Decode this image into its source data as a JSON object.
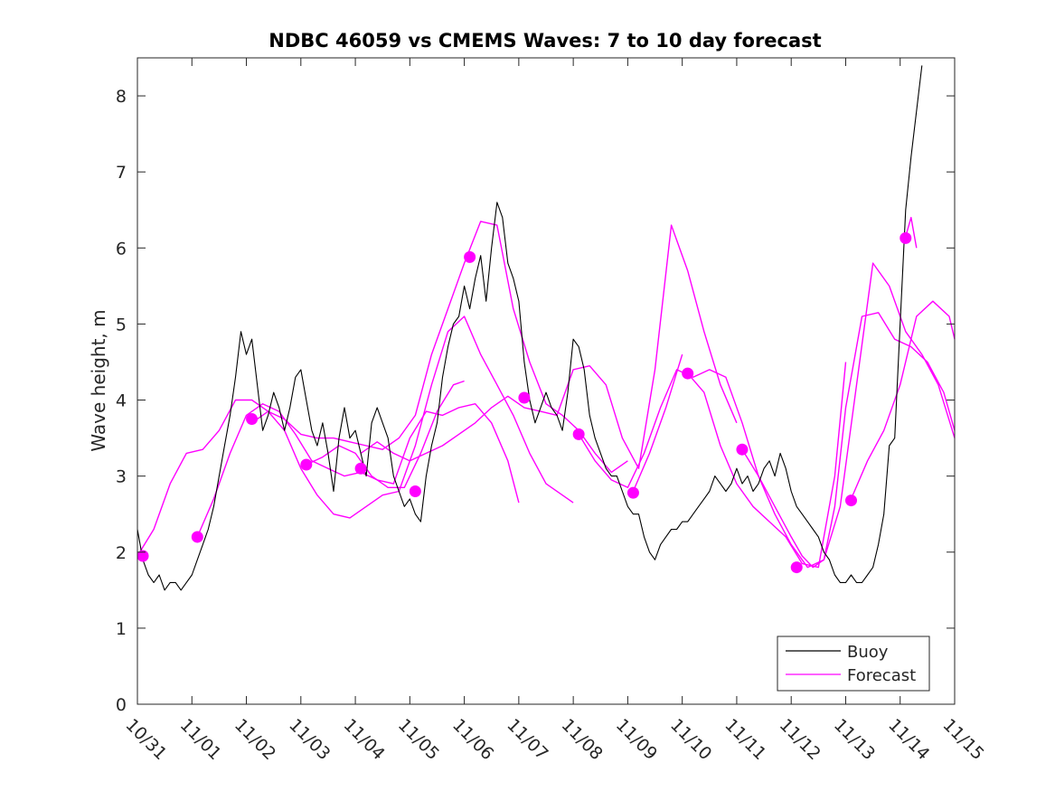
{
  "chart_data": {
    "type": "line",
    "title": "NDBC 46059 vs CMEMS Waves: 7 to 10 day forecast",
    "xlabel": "",
    "ylabel": "Wave height, m",
    "xlim": [
      0,
      15
    ],
    "ylim": [
      0,
      8.5
    ],
    "yticks": [
      0,
      1,
      2,
      3,
      4,
      5,
      6,
      7,
      8
    ],
    "xtick_labels": [
      "10/31",
      "11/01",
      "11/02",
      "11/03",
      "11/04",
      "11/05",
      "11/06",
      "11/07",
      "11/08",
      "11/09",
      "11/10",
      "11/11",
      "11/12",
      "11/13",
      "11/14",
      "11/15"
    ],
    "grid": false,
    "legend": {
      "position": "bottom-right",
      "entries": [
        {
          "label": "Buoy",
          "color": "#000000"
        },
        {
          "label": "Forecast",
          "color": "#ff00ff"
        }
      ]
    },
    "colors": {
      "buoy": "#000000",
      "forecast": "#ff00ff"
    },
    "buoy": {
      "name": "Buoy",
      "x": [
        0,
        0.1,
        0.2,
        0.3,
        0.4,
        0.5,
        0.6,
        0.7,
        0.8,
        0.9,
        1.0,
        1.1,
        1.2,
        1.3,
        1.4,
        1.5,
        1.6,
        1.7,
        1.8,
        1.9,
        2.0,
        2.1,
        2.2,
        2.3,
        2.4,
        2.5,
        2.6,
        2.7,
        2.8,
        2.9,
        3.0,
        3.1,
        3.2,
        3.3,
        3.4,
        3.5,
        3.6,
        3.7,
        3.8,
        3.9,
        4.0,
        4.1,
        4.2,
        4.3,
        4.4,
        4.5,
        4.6,
        4.7,
        4.8,
        4.9,
        5.0,
        5.1,
        5.2,
        5.3,
        5.4,
        5.5,
        5.6,
        5.7,
        5.8,
        5.9,
        6.0,
        6.1,
        6.2,
        6.3,
        6.4,
        6.5,
        6.6,
        6.7,
        6.8,
        6.9,
        7.0,
        7.1,
        7.2,
        7.3,
        7.4,
        7.5,
        7.6,
        7.7,
        7.8,
        7.9,
        8.0,
        8.1,
        8.2,
        8.3,
        8.4,
        8.5,
        8.6,
        8.7,
        8.8,
        8.9,
        9.0,
        9.1,
        9.2,
        9.3,
        9.4,
        9.5,
        9.6,
        9.7,
        9.8,
        9.9,
        10.0,
        10.1,
        10.2,
        10.3,
        10.4,
        10.5,
        10.6,
        10.7,
        10.8,
        10.9,
        11.0,
        11.1,
        11.2,
        11.3,
        11.4,
        11.5,
        11.6,
        11.7,
        11.8,
        11.9,
        12.0,
        12.1,
        12.2,
        12.3,
        12.4,
        12.5,
        12.6,
        12.7,
        12.8,
        12.9,
        13.0,
        13.1,
        13.2,
        13.3,
        13.4,
        13.5,
        13.6,
        13.7,
        13.8,
        13.9,
        14.0,
        14.1,
        14.2,
        14.3,
        14.4
      ],
      "values": [
        2.3,
        1.9,
        1.7,
        1.6,
        1.7,
        1.5,
        1.6,
        1.6,
        1.5,
        1.6,
        1.7,
        1.9,
        2.1,
        2.3,
        2.6,
        3.0,
        3.4,
        3.8,
        4.3,
        4.9,
        4.6,
        4.8,
        4.2,
        3.6,
        3.8,
        4.1,
        3.9,
        3.6,
        3.9,
        4.3,
        4.4,
        4.0,
        3.6,
        3.4,
        3.7,
        3.3,
        2.8,
        3.5,
        3.9,
        3.5,
        3.6,
        3.3,
        3.0,
        3.7,
        3.9,
        3.7,
        3.5,
        3.0,
        2.8,
        2.6,
        2.7,
        2.5,
        2.4,
        3.0,
        3.4,
        3.7,
        4.3,
        4.7,
        5.0,
        5.1,
        5.5,
        5.2,
        5.6,
        5.9,
        5.3,
        6.0,
        6.6,
        6.4,
        5.8,
        5.6,
        5.3,
        4.5,
        4.0,
        3.7,
        3.9,
        4.1,
        3.9,
        3.8,
        3.6,
        4.1,
        4.8,
        4.7,
        4.4,
        3.8,
        3.5,
        3.3,
        3.1,
        3.0,
        3.0,
        2.8,
        2.6,
        2.5,
        2.5,
        2.2,
        2.0,
        1.9,
        2.1,
        2.2,
        2.3,
        2.3,
        2.4,
        2.4,
        2.5,
        2.6,
        2.7,
        2.8,
        3.0,
        2.9,
        2.8,
        2.9,
        3.1,
        2.9,
        3.0,
        2.8,
        2.9,
        3.1,
        3.2,
        3.0,
        3.3,
        3.1,
        2.8,
        2.6,
        2.5,
        2.4,
        2.3,
        2.2,
        2.0,
        1.9,
        1.7,
        1.6,
        1.6,
        1.7,
        1.6,
        1.6,
        1.7,
        1.8,
        2.1,
        2.5,
        3.4,
        3.5,
        5.0,
        6.5,
        7.2,
        7.8,
        8.4
      ]
    },
    "forecast_series": [
      {
        "x": [
          0,
          0.3,
          0.6,
          0.9,
          1.2,
          1.5,
          1.8,
          2.1,
          2.4,
          2.7,
          3.0,
          3.3,
          3.6,
          3.9,
          4.2,
          4.5,
          4.8,
          5.1,
          5.4,
          5.7,
          6.0,
          6.3,
          6.6,
          6.9,
          7.2,
          7.5,
          7.8,
          8.0
        ],
        "values": [
          1.95,
          2.3,
          2.9,
          3.3,
          3.35,
          3.6,
          4.0,
          4.0,
          3.85,
          3.6,
          3.1,
          2.75,
          2.5,
          2.45,
          2.6,
          2.75,
          2.8,
          3.4,
          4.2,
          4.9,
          5.1,
          4.6,
          4.2,
          3.8,
          3.3,
          2.9,
          2.75,
          2.65
        ]
      },
      {
        "x": [
          1.1,
          1.4,
          1.7,
          2.0,
          2.3,
          2.6,
          2.9,
          3.2,
          3.5,
          3.8,
          4.1,
          4.4,
          4.7,
          5.0,
          5.3,
          5.6,
          5.9,
          6.2,
          6.5,
          6.8,
          7.0
        ],
        "values": [
          2.2,
          2.7,
          3.3,
          3.8,
          3.95,
          3.85,
          3.55,
          3.2,
          3.1,
          3.0,
          3.05,
          2.95,
          2.9,
          3.5,
          3.85,
          3.8,
          3.9,
          3.95,
          3.7,
          3.2,
          2.65
        ]
      },
      {
        "x": [
          2.1,
          2.4,
          2.7,
          3.0,
          3.3,
          3.6,
          3.9,
          4.2,
          4.5,
          4.8,
          5.1,
          5.4,
          5.7,
          6.0,
          6.3,
          6.6,
          6.9,
          7.2,
          7.5,
          7.8,
          8.1,
          8.4,
          8.7,
          9.0
        ],
        "values": [
          3.7,
          3.85,
          3.75,
          3.55,
          3.5,
          3.5,
          3.45,
          3.4,
          3.35,
          3.5,
          3.8,
          4.6,
          5.2,
          5.8,
          6.35,
          6.3,
          5.2,
          4.5,
          3.95,
          3.8,
          3.6,
          3.3,
          3.05,
          3.2
        ]
      },
      {
        "x": [
          3.1,
          3.4,
          3.7,
          4.0,
          4.3,
          4.6,
          4.9,
          5.2,
          5.5,
          5.8,
          6.0
        ],
        "values": [
          3.15,
          3.25,
          3.4,
          3.3,
          3.0,
          2.85,
          2.85,
          3.3,
          3.85,
          4.2,
          4.25
        ]
      },
      {
        "x": [
          4.1,
          4.4,
          4.7,
          5.0,
          5.3,
          5.6,
          5.9,
          6.2,
          6.5,
          6.8,
          7.1,
          7.4,
          7.7,
          8.0,
          8.3,
          8.6,
          8.9,
          9.2,
          9.5,
          9.8,
          10.1,
          10.4,
          10.7,
          11.0
        ],
        "values": [
          3.3,
          3.45,
          3.3,
          3.2,
          3.3,
          3.4,
          3.55,
          3.7,
          3.9,
          4.05,
          3.9,
          3.85,
          3.8,
          4.4,
          4.45,
          4.2,
          3.5,
          3.1,
          4.4,
          6.3,
          5.7,
          4.9,
          4.2,
          3.7
        ]
      },
      {
        "x": [
          8.1,
          8.4,
          8.7,
          9.0,
          9.3,
          9.6,
          9.9,
          10.2,
          10.5,
          10.8,
          11.1,
          11.4,
          11.7,
          12.0,
          12.2,
          12.4,
          12.6,
          12.8,
          13.0,
          13.3,
          13.6,
          13.9,
          14.2,
          14.5,
          14.8,
          15.0
        ],
        "values": [
          3.55,
          3.2,
          2.95,
          2.85,
          3.3,
          3.9,
          4.4,
          4.3,
          4.4,
          4.3,
          3.7,
          3.0,
          2.6,
          2.2,
          1.95,
          1.8,
          1.9,
          2.6,
          3.9,
          5.1,
          5.15,
          4.8,
          4.7,
          4.5,
          4.1,
          3.6
        ]
      },
      {
        "x": [
          9.1,
          9.4,
          9.7,
          10.0
        ],
        "values": [
          2.8,
          3.3,
          3.9,
          4.6
        ]
      },
      {
        "x": [
          10.1,
          10.4,
          10.7,
          11.0,
          11.3,
          11.6,
          11.9,
          12.2,
          12.5,
          12.8,
          13.0
        ],
        "values": [
          4.35,
          4.1,
          3.4,
          2.9,
          2.6,
          2.4,
          2.2,
          1.85,
          1.8,
          3.0,
          4.5
        ]
      },
      {
        "x": [
          11.1,
          11.4,
          11.7,
          12.0,
          12.3,
          12.6,
          12.9,
          13.2,
          13.5,
          13.8,
          14.1,
          14.4,
          14.7,
          15.0
        ],
        "values": [
          3.35,
          3.0,
          2.5,
          2.1,
          1.8,
          1.9,
          2.6,
          4.2,
          5.8,
          5.5,
          4.9,
          4.6,
          4.2,
          3.5
        ]
      },
      {
        "x": [
          13.1,
          13.4,
          13.7,
          14.0,
          14.3,
          14.6,
          14.9,
          15.0
        ],
        "values": [
          2.7,
          3.2,
          3.6,
          4.2,
          5.1,
          5.3,
          5.1,
          4.8
        ]
      },
      {
        "x": [
          14.1,
          14.2,
          14.3
        ],
        "values": [
          6.15,
          6.4,
          6.0
        ]
      }
    ],
    "forecast_markers": {
      "x": [
        0.1,
        1.1,
        2.1,
        3.1,
        4.1,
        5.1,
        6.1,
        7.1,
        8.1,
        9.1,
        10.1,
        11.1,
        12.1,
        13.1,
        14.1
      ],
      "values": [
        1.95,
        2.2,
        3.75,
        3.15,
        3.1,
        2.8,
        5.88,
        4.03,
        3.55,
        2.78,
        4.35,
        3.35,
        1.8,
        2.68,
        6.13
      ]
    }
  }
}
